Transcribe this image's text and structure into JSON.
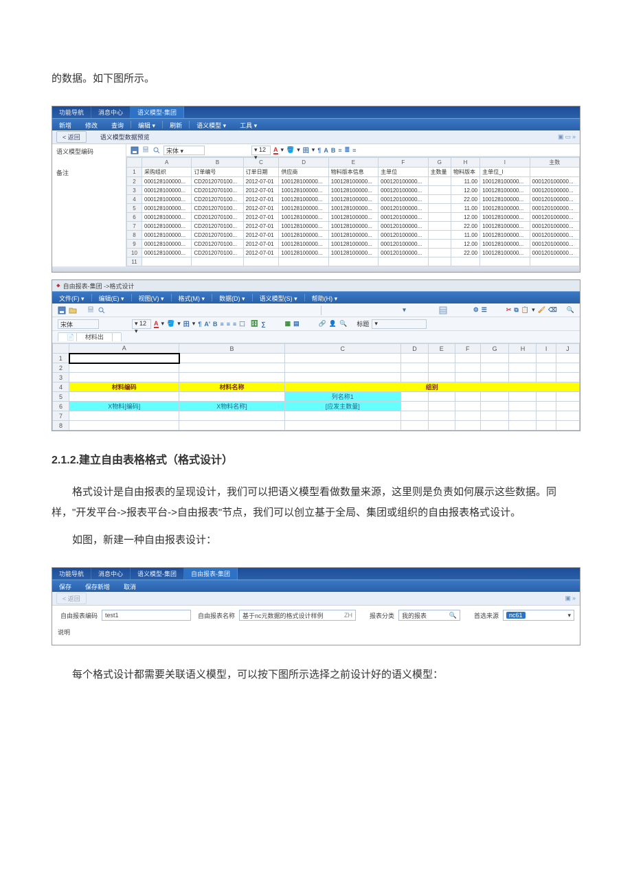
{
  "intro_text": "的数据。如下图所示。",
  "section_title": "2.1.2.建立自由表格格式（格式设计）",
  "para1": "格式设计是自由报表的呈现设计，我们可以把语义模型看做数量来源，这里则是负责如何展示这些数据。同样，\"开发平台->报表平台->自由报表\"节点，我们可以创立基于全局、集团或组织的自由报表格式设计。",
  "para2": "如图，新建一种自由报表设计：",
  "para3": "每个格式设计都需要关联语义模型，可以按下图所示选择之前设计好的语义模型：",
  "shot1": {
    "top_tabs": [
      "功能导航",
      "消息中心",
      "语义模型-集团"
    ],
    "menu": [
      "新增",
      "修改",
      "查询",
      "编辑 ▾",
      "刷新",
      "语义模型 ▾",
      "工具 ▾"
    ],
    "back_label": "< 返回",
    "preview_title": "语义模型数据预览",
    "left_labels": [
      "语义模型编码",
      "备注"
    ],
    "font_name": "宋体",
    "font_size": "12",
    "columns": [
      "",
      "A",
      "B",
      "C",
      "D",
      "E",
      "F",
      "G",
      "H",
      "I",
      "主数"
    ],
    "header_rows": [
      "",
      "采购组织",
      "订单编号",
      "订单日期",
      "供应商",
      "物料版本信息",
      "主单位",
      "主数量",
      "物料版本",
      "主单位_l",
      ""
    ],
    "rows": [
      [
        "2",
        "000128100000...",
        "CD2012070100...",
        "2012-07-01",
        "100128100000...",
        "100128100000...",
        "000120100000...",
        "",
        "11.00",
        "100128100000...",
        "000120100000..."
      ],
      [
        "3",
        "000128100000...",
        "CD2012070100...",
        "2012-07-01",
        "100128100000...",
        "100128100000...",
        "000120100000...",
        "",
        "12.00",
        "100128100000...",
        "000120100000..."
      ],
      [
        "4",
        "000128100000...",
        "CD2012070100...",
        "2012-07-01",
        "100128100000...",
        "100128100000...",
        "000120100000...",
        "",
        "22.00",
        "100128100000...",
        "000120100000..."
      ],
      [
        "5",
        "000128100000...",
        "CD2012070100...",
        "2012-07-01",
        "100128100000...",
        "100128100000...",
        "000120100000...",
        "",
        "11.00",
        "100128100000...",
        "000120100000..."
      ],
      [
        "6",
        "000128100000...",
        "CD2012070100...",
        "2012-07-01",
        "100128100000...",
        "100128100000...",
        "000120100000...",
        "",
        "12.00",
        "100128100000...",
        "000120100000..."
      ],
      [
        "7",
        "000128100000...",
        "CD2012070100...",
        "2012-07-01",
        "100128100000...",
        "100128100000...",
        "000120100000...",
        "",
        "22.00",
        "100128100000...",
        "000120100000..."
      ],
      [
        "8",
        "000128100000...",
        "CD2012070100...",
        "2012-07-01",
        "100128100000...",
        "100128100000...",
        "000120100000...",
        "",
        "11.00",
        "100128100000...",
        "000120100000..."
      ],
      [
        "9",
        "000128100000...",
        "CD2012070100...",
        "2012-07-01",
        "100128100000...",
        "100128100000...",
        "000120100000...",
        "",
        "12.00",
        "100128100000...",
        "000120100000..."
      ],
      [
        "10",
        "000128100000...",
        "CD2012070100...",
        "2012-07-01",
        "100128100000...",
        "100128100000...",
        "000120100000...",
        "",
        "22.00",
        "100128100000...",
        "000120100000..."
      ],
      [
        "11",
        "",
        "",
        "",
        "",
        "",
        "",
        "",
        "",
        "",
        ""
      ]
    ]
  },
  "shot2": {
    "window_title": "自由报表-集团 ->格式设计",
    "menu": [
      "文件(F) ▾",
      "编辑(E) ▾",
      "视图(V) ▾",
      "格式(M) ▾",
      "数据(D) ▾",
      "语义模型(S) ▾",
      "帮助(H) ▾"
    ],
    "font_name": "宋体",
    "font_size": "12",
    "label_head": "标题",
    "sheet_tab": "材料出",
    "columns": [
      "",
      "A",
      "B",
      "C",
      "D",
      "E",
      "F",
      "G",
      "H",
      "I",
      "J"
    ],
    "row4": {
      "a": "材料编码",
      "b": "材料名称",
      "col_wide": "组别"
    },
    "row5": {
      "c": "列名称1"
    },
    "row6": {
      "a": "X物料[编码]",
      "b": "X物料名称]",
      "c": "[应发主数量]"
    },
    "blank_rows": [
      1,
      2,
      3,
      5,
      7,
      8
    ]
  },
  "shot3": {
    "top_tabs": [
      "功能导航",
      "消息中心",
      "语义模型-集团",
      "自由报表-集团"
    ],
    "menu": [
      "保存",
      "保存新增",
      "取消"
    ],
    "back_label": "< 返回",
    "fields": {
      "code_label": "自由报表编码",
      "code_value": "test1",
      "name_label": "自由报表名称",
      "name_value": "基于nc元数据的格式设计样例",
      "name_suffix": "ZH",
      "cat_label": "报表分类",
      "cat_value": "我的报表",
      "ds_label": "首选来源",
      "ds_value": "nc61",
      "note_label": "说明"
    }
  },
  "colors": {
    "nav_start": "#1c4c99",
    "nav_end": "#2b5fa8",
    "menu_start": "#3b78c6",
    "menu_end": "#2a61a8",
    "grid_border": "#c9d3de",
    "grid_head": "#eef2f7",
    "highlight_yellow": "#ffff00",
    "highlight_cyan": "#66ffff"
  }
}
